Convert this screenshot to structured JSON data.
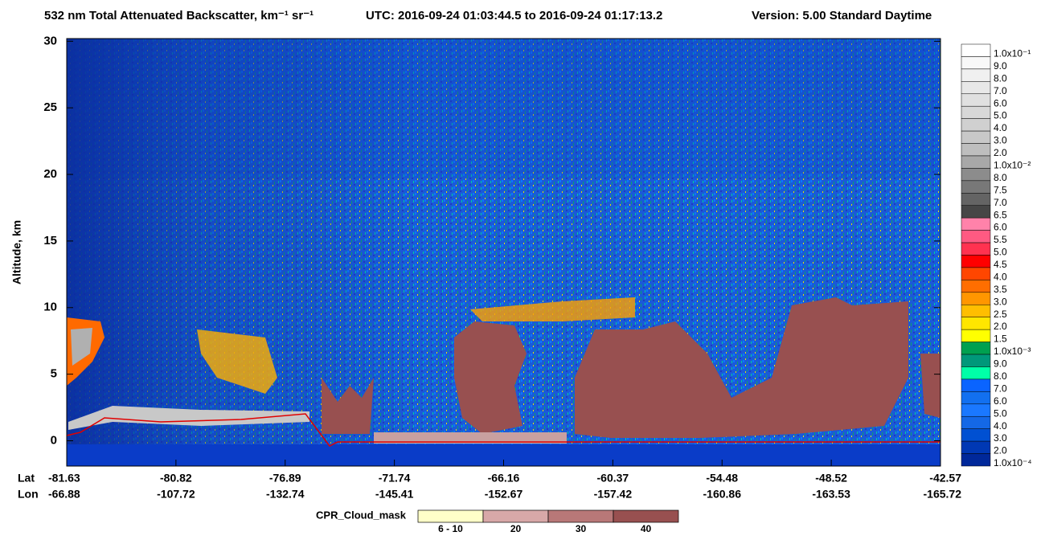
{
  "chart_data": {
    "type": "heatmap",
    "title": "532 nm Total Attenuated Backscatter, km⁻¹ sr⁻¹",
    "subtitle": "UTC:  2016-09-24 01:03:44.5  to  2016-09-24 01:17:13.2",
    "version": "Version: 5.00  Standard  Daytime",
    "y_label": "Altitude, km",
    "ylim": [
      -1.9,
      30.2
    ],
    "yticks": [
      0,
      5,
      10,
      15,
      20,
      25,
      30
    ],
    "x_row_labels": [
      "Lat",
      "Lon"
    ],
    "lat": [
      "-81.63",
      "-80.82",
      "-76.89",
      "-71.74",
      "-66.16",
      "-60.37",
      "-54.48",
      "-48.52",
      "-42.57"
    ],
    "lon": [
      "-66.88",
      "-107.72",
      "-132.74",
      "-145.41",
      "-152.67",
      "-157.42",
      "-160.86",
      "-163.53",
      "-165.72"
    ],
    "colorbar": {
      "labels": [
        "1.0x10⁻¹",
        "9.0",
        "8.0",
        "7.0",
        "6.0",
        "5.0",
        "4.0",
        "3.0",
        "2.0",
        "1.0x10⁻²",
        "8.0",
        "7.5",
        "7.0",
        "6.5",
        "6.0",
        "5.5",
        "5.0",
        "4.5",
        "4.0",
        "3.5",
        "3.0",
        "2.5",
        "2.0",
        "1.5",
        "1.0x10⁻³",
        "9.0",
        "8.0",
        "7.0",
        "6.0",
        "5.0",
        "4.0",
        "3.0",
        "2.0",
        "1.0x10⁻⁴"
      ],
      "colors": [
        "#ffffff",
        "#f8f8f8",
        "#f0f0f0",
        "#e8e8e8",
        "#e0e0e0",
        "#d8d8d8",
        "#d0d0d0",
        "#c8c8c8",
        "#bebebe",
        "#a8a8a8",
        "#8c8c8c",
        "#787878",
        "#646464",
        "#464646",
        "#ff82aa",
        "#ff5a82",
        "#ff3250",
        "#ff0000",
        "#ff4600",
        "#ff6e00",
        "#ff9600",
        "#ffbe00",
        "#ffe600",
        "#ffff00",
        "#00a050",
        "#00987a",
        "#00ffa8",
        "#0a64ff",
        "#1270f0",
        "#1a78ff",
        "#1468e6",
        "#0050d2",
        "#0038b4",
        "#00289a"
      ]
    },
    "mask_legend": {
      "title": "CPR_Cloud_mask",
      "labels": [
        "6 - 10",
        "20",
        "30",
        "40"
      ],
      "colors": [
        "#ffffc8",
        "#d8a8a8",
        "#b87878",
        "#985050"
      ]
    }
  }
}
